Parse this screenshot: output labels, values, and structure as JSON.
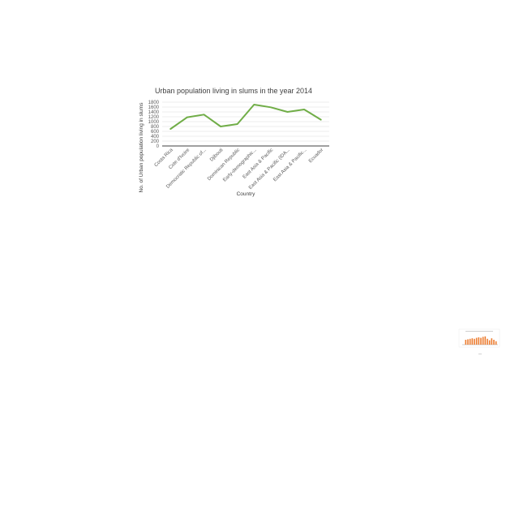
{
  "chart_data": [
    {
      "type": "line",
      "title": "Urban population living in slums in the year 2014",
      "xlabel": "Country",
      "ylabel": "No. of Urban population living in slums",
      "categories": [
        "Costa Rica",
        "Cote d'Ivoire",
        "Democratic Republic of...",
        "Djibouti",
        "Dominican Republic",
        "Early-demographic...",
        "East Asia & Pacific",
        "East Asia & Pacific (IDA...",
        "East Asia & Pacific...",
        "Ecuador"
      ],
      "series": [
        {
          "values": [
            700,
            1180,
            1290,
            800,
            900,
            1700,
            1590,
            1400,
            1500,
            1080
          ]
        }
      ],
      "ylim": [
        0,
        1800
      ],
      "yticks": [
        "0",
        "200",
        "400",
        "600",
        "800",
        "1000",
        "1200",
        "1400",
        "1600",
        "1800"
      ],
      "grid": true,
      "colors": {
        "line": "#70ad47",
        "grid": "#d9d9d9",
        "axis": "#000000"
      }
    },
    {
      "type": "bar",
      "values": [
        0.5,
        0.55,
        0.6,
        0.65,
        0.6,
        0.7,
        0.75,
        0.7,
        0.8,
        0.85,
        0.6,
        0.45,
        0.65,
        0.5,
        0.35
      ],
      "colors": {
        "bar": "#ed7d31",
        "axis": "#9e9e9e"
      }
    }
  ]
}
